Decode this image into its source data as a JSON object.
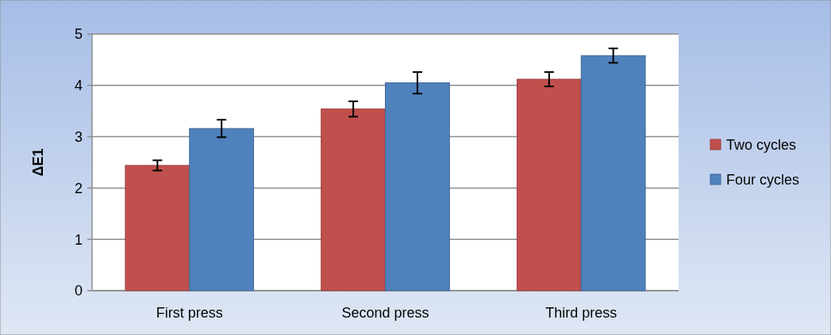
{
  "chart_data": {
    "type": "bar",
    "ylabel": "ΔE1",
    "categories": [
      "First press",
      "Second press",
      "Third press"
    ],
    "series": [
      {
        "name": "Two cycles",
        "color": "#c0504d",
        "values": [
          2.44,
          3.54,
          4.12
        ],
        "errors": [
          0.1,
          0.15,
          0.14
        ]
      },
      {
        "name": "Four cycles",
        "color": "#4f81bd",
        "values": [
          3.16,
          4.05,
          4.58
        ],
        "errors": [
          0.17,
          0.21,
          0.14
        ]
      }
    ],
    "ylim": [
      0,
      5
    ],
    "yticks": [
      0,
      1,
      2,
      3,
      4,
      5
    ],
    "grid": "y",
    "legend": "right"
  }
}
